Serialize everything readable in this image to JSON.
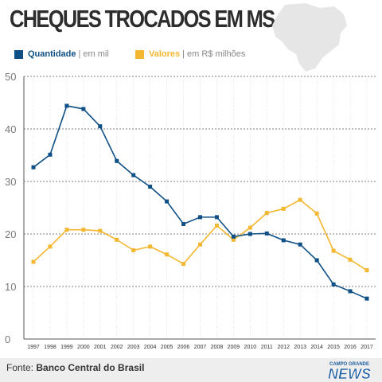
{
  "header": {
    "title": "CHEQUES TROCADOS EM MS"
  },
  "legend": [
    {
      "name": "Quantidade",
      "separator": "|",
      "unit": "em mil",
      "color": "#0e4f86"
    },
    {
      "name": "Valores",
      "separator": "|",
      "unit": "em R$ milhões",
      "color": "#f4b731"
    }
  ],
  "footer": {
    "source_label": "Fonte:",
    "source_name": "Banco Central do Brasil",
    "logo_small": "CAMPO GRANDE",
    "logo_big": "NEWS"
  },
  "chart_data": {
    "type": "line",
    "title": "CHEQUES TROCADOS EM MS",
    "xlabel": "",
    "ylabel": "",
    "ylim": [
      0,
      50
    ],
    "yticks": [
      0,
      10,
      20,
      30,
      40,
      50
    ],
    "grid": true,
    "legend_position": "top-left",
    "x": [
      "1997",
      "1998",
      "1999",
      "2000",
      "2001",
      "2002",
      "2003",
      "2004",
      "2005",
      "2006",
      "2007",
      "2008",
      "2009",
      "2010",
      "2011",
      "2012",
      "2013",
      "2014",
      "2015",
      "2016",
      "2017"
    ],
    "series": [
      {
        "name": "Quantidade",
        "color": "#0e4f86",
        "values": [
          32.7,
          35.1,
          44.4,
          43.8,
          40.5,
          33.9,
          31.2,
          29.0,
          26.2,
          21.9,
          23.2,
          23.2,
          19.5,
          20.0,
          20.1,
          18.8,
          18.0,
          15.0,
          10.4,
          9.1,
          7.7
        ]
      },
      {
        "name": "Valores",
        "color": "#f4b731",
        "values": [
          14.7,
          17.6,
          20.8,
          20.8,
          20.6,
          18.9,
          16.9,
          17.6,
          16.1,
          14.3,
          18.0,
          21.6,
          18.9,
          21.2,
          24.0,
          24.8,
          26.5,
          23.9,
          16.8,
          15.1,
          13.1
        ]
      }
    ]
  }
}
